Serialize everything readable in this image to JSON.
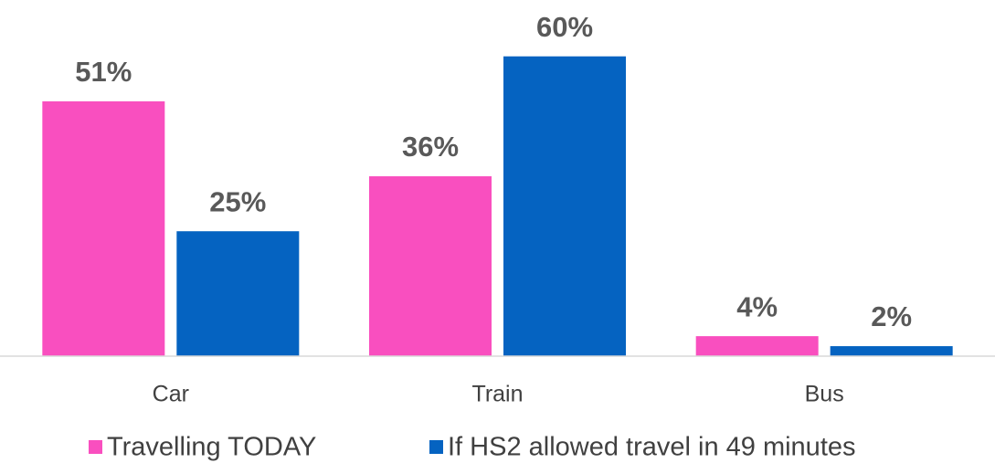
{
  "chart_data": {
    "type": "bar",
    "categories": [
      "Car",
      "Train",
      "Bus"
    ],
    "series": [
      {
        "name": "Travelling TODAY",
        "color": "#f94fbf",
        "values": [
          51,
          36,
          4
        ],
        "value_labels": [
          "51%",
          "36%",
          "4%"
        ]
      },
      {
        "name": "If HS2 allowed travel in 49 minutes",
        "color": "#0563c1",
        "values": [
          25,
          60,
          2
        ],
        "value_labels": [
          "25%",
          "60%",
          "2%"
        ]
      }
    ],
    "ylim": [
      0,
      70
    ]
  }
}
